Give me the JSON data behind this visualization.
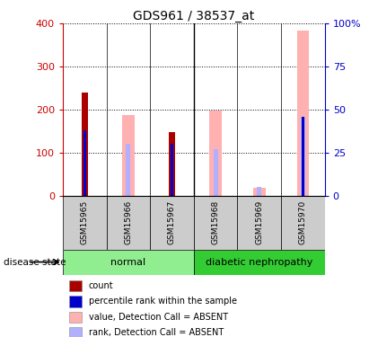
{
  "title": "GDS961 / 38537_at",
  "samples": [
    "GSM15965",
    "GSM15966",
    "GSM15967",
    "GSM15968",
    "GSM15969",
    "GSM15970"
  ],
  "count_values": [
    240,
    0,
    148,
    0,
    0,
    0
  ],
  "percentile_values": [
    38,
    0,
    30,
    0,
    0,
    46
  ],
  "absent_value_values": [
    0,
    187,
    0,
    198,
    17,
    383
  ],
  "absent_rank_values": [
    0,
    30,
    30,
    27,
    5,
    46
  ],
  "ylim_left": [
    0,
    400
  ],
  "ylim_right": [
    0,
    100
  ],
  "yticks_left": [
    0,
    100,
    200,
    300,
    400
  ],
  "yticks_right": [
    0,
    25,
    50,
    75,
    100
  ],
  "ytick_labels_left": [
    "0",
    "100",
    "200",
    "300",
    "400"
  ],
  "ytick_labels_right": [
    "0",
    "25",
    "50",
    "75",
    "100%"
  ],
  "left_axis_color": "#cc0000",
  "right_axis_color": "#0000cc",
  "count_color": "#aa0000",
  "percentile_color": "#0000cc",
  "absent_value_color": "#ffb0b0",
  "absent_rank_color": "#b0b0ff",
  "normal_color": "#90ee90",
  "diabetic_color": "#33cc33",
  "gray_bg": "#cccccc",
  "disease_state_label": "disease state",
  "legend_items": [
    {
      "label": "count",
      "color": "#aa0000"
    },
    {
      "label": "percentile rank within the sample",
      "color": "#0000cc"
    },
    {
      "label": "value, Detection Call = ABSENT",
      "color": "#ffb0b0"
    },
    {
      "label": "rank, Detection Call = ABSENT",
      "color": "#b0b0ff"
    }
  ]
}
